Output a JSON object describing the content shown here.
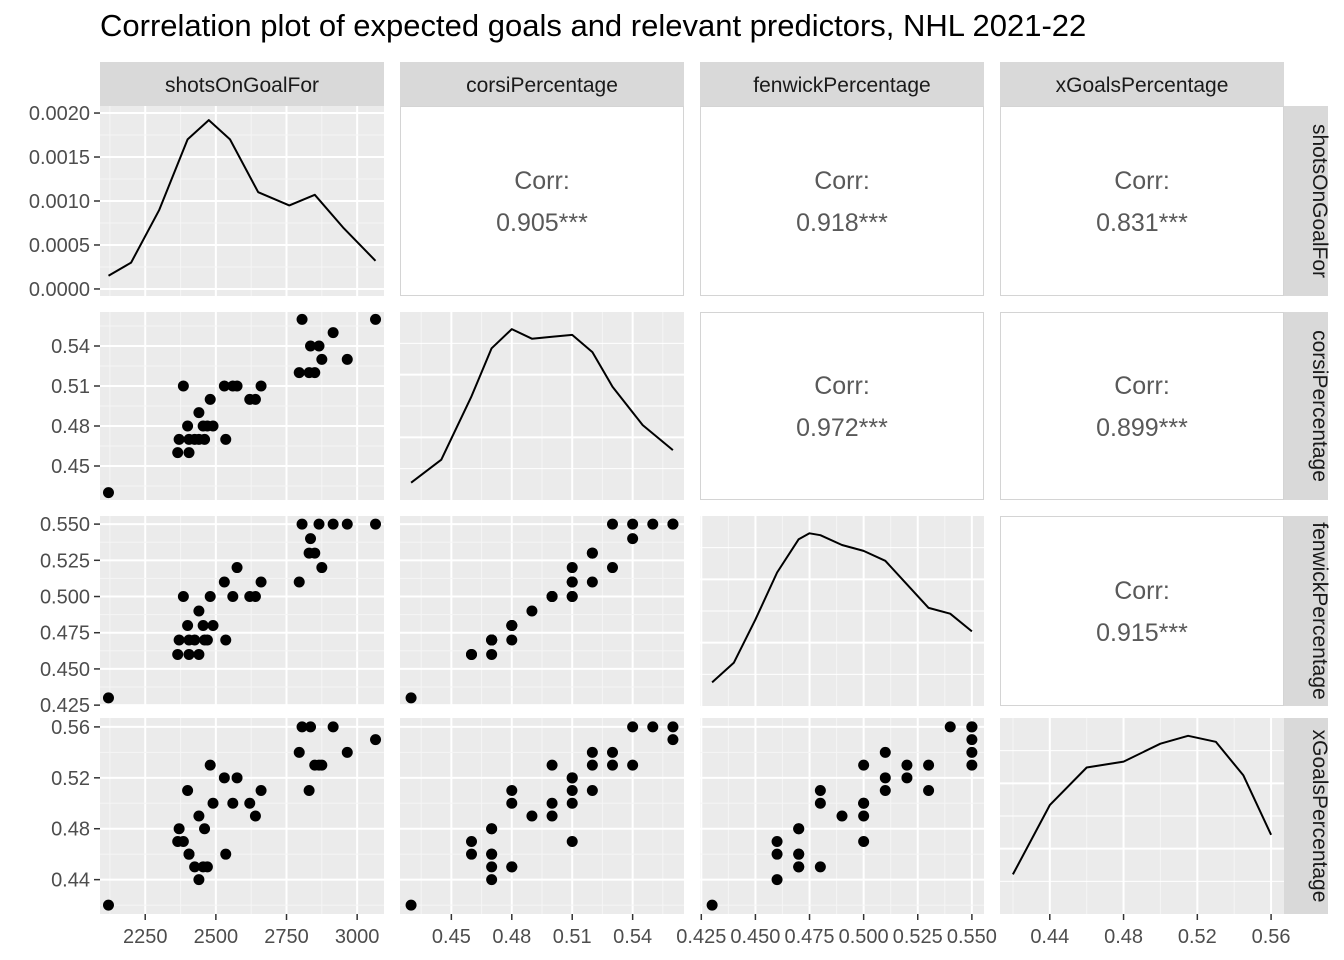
{
  "chart_data": {
    "type": "scatter",
    "title": "Correlation plot of expected goals and relevant predictors, NHL 2021-22",
    "variables": [
      "shotsOnGoalFor",
      "corsiPercentage",
      "fenwickPercentage",
      "xGoalsPercentage"
    ],
    "corr_label": "Corr:",
    "correlations": [
      {
        "row": 0,
        "col": 1,
        "value": "0.905***"
      },
      {
        "row": 0,
        "col": 2,
        "value": "0.918***"
      },
      {
        "row": 0,
        "col": 3,
        "value": "0.831***"
      },
      {
        "row": 1,
        "col": 2,
        "value": "0.972***"
      },
      {
        "row": 1,
        "col": 3,
        "value": "0.899***"
      },
      {
        "row": 2,
        "col": 3,
        "value": "0.915***"
      }
    ],
    "points": [
      {
        "shotsOnGoalFor": 2120,
        "corsiPercentage": 0.43,
        "fenwickPercentage": 0.43,
        "xGoalsPercentage": 0.42
      },
      {
        "shotsOnGoalFor": 2365,
        "corsiPercentage": 0.46,
        "fenwickPercentage": 0.46,
        "xGoalsPercentage": 0.47
      },
      {
        "shotsOnGoalFor": 2370,
        "corsiPercentage": 0.47,
        "fenwickPercentage": 0.47,
        "xGoalsPercentage": 0.48
      },
      {
        "shotsOnGoalFor": 2385,
        "corsiPercentage": 0.51,
        "fenwickPercentage": 0.5,
        "xGoalsPercentage": 0.47
      },
      {
        "shotsOnGoalFor": 2400,
        "corsiPercentage": 0.48,
        "fenwickPercentage": 0.48,
        "xGoalsPercentage": 0.51
      },
      {
        "shotsOnGoalFor": 2405,
        "corsiPercentage": 0.46,
        "fenwickPercentage": 0.46,
        "xGoalsPercentage": 0.46
      },
      {
        "shotsOnGoalFor": 2405,
        "corsiPercentage": 0.47,
        "fenwickPercentage": 0.47,
        "xGoalsPercentage": 0.46
      },
      {
        "shotsOnGoalFor": 2425,
        "corsiPercentage": 0.47,
        "fenwickPercentage": 0.47,
        "xGoalsPercentage": 0.45
      },
      {
        "shotsOnGoalFor": 2440,
        "corsiPercentage": 0.49,
        "fenwickPercentage": 0.49,
        "xGoalsPercentage": 0.49
      },
      {
        "shotsOnGoalFor": 2440,
        "corsiPercentage": 0.47,
        "fenwickPercentage": 0.46,
        "xGoalsPercentage": 0.44
      },
      {
        "shotsOnGoalFor": 2455,
        "corsiPercentage": 0.48,
        "fenwickPercentage": 0.48,
        "xGoalsPercentage": 0.45
      },
      {
        "shotsOnGoalFor": 2460,
        "corsiPercentage": 0.47,
        "fenwickPercentage": 0.47,
        "xGoalsPercentage": 0.48
      },
      {
        "shotsOnGoalFor": 2470,
        "corsiPercentage": 0.48,
        "fenwickPercentage": 0.47,
        "xGoalsPercentage": 0.45
      },
      {
        "shotsOnGoalFor": 2480,
        "corsiPercentage": 0.5,
        "fenwickPercentage": 0.5,
        "xGoalsPercentage": 0.53
      },
      {
        "shotsOnGoalFor": 2490,
        "corsiPercentage": 0.48,
        "fenwickPercentage": 0.48,
        "xGoalsPercentage": 0.5
      },
      {
        "shotsOnGoalFor": 2530,
        "corsiPercentage": 0.51,
        "fenwickPercentage": 0.51,
        "xGoalsPercentage": 0.52
      },
      {
        "shotsOnGoalFor": 2535,
        "corsiPercentage": 0.47,
        "fenwickPercentage": 0.47,
        "xGoalsPercentage": 0.46
      },
      {
        "shotsOnGoalFor": 2560,
        "corsiPercentage": 0.51,
        "fenwickPercentage": 0.5,
        "xGoalsPercentage": 0.5
      },
      {
        "shotsOnGoalFor": 2575,
        "corsiPercentage": 0.51,
        "fenwickPercentage": 0.52,
        "xGoalsPercentage": 0.52
      },
      {
        "shotsOnGoalFor": 2620,
        "corsiPercentage": 0.5,
        "fenwickPercentage": 0.5,
        "xGoalsPercentage": 0.5
      },
      {
        "shotsOnGoalFor": 2640,
        "corsiPercentage": 0.5,
        "fenwickPercentage": 0.5,
        "xGoalsPercentage": 0.49
      },
      {
        "shotsOnGoalFor": 2660,
        "corsiPercentage": 0.51,
        "fenwickPercentage": 0.51,
        "xGoalsPercentage": 0.51
      },
      {
        "shotsOnGoalFor": 2795,
        "corsiPercentage": 0.52,
        "fenwickPercentage": 0.51,
        "xGoalsPercentage": 0.54
      },
      {
        "shotsOnGoalFor": 2805,
        "corsiPercentage": 0.56,
        "fenwickPercentage": 0.55,
        "xGoalsPercentage": 0.56
      },
      {
        "shotsOnGoalFor": 2830,
        "corsiPercentage": 0.52,
        "fenwickPercentage": 0.53,
        "xGoalsPercentage": 0.51
      },
      {
        "shotsOnGoalFor": 2835,
        "corsiPercentage": 0.54,
        "fenwickPercentage": 0.54,
        "xGoalsPercentage": 0.56
      },
      {
        "shotsOnGoalFor": 2850,
        "corsiPercentage": 0.52,
        "fenwickPercentage": 0.53,
        "xGoalsPercentage": 0.53
      },
      {
        "shotsOnGoalFor": 2865,
        "corsiPercentage": 0.54,
        "fenwickPercentage": 0.55,
        "xGoalsPercentage": 0.53
      },
      {
        "shotsOnGoalFor": 2875,
        "corsiPercentage": 0.53,
        "fenwickPercentage": 0.52,
        "xGoalsPercentage": 0.53
      },
      {
        "shotsOnGoalFor": 2915,
        "corsiPercentage": 0.55,
        "fenwickPercentage": 0.55,
        "xGoalsPercentage": 0.56
      },
      {
        "shotsOnGoalFor": 2965,
        "corsiPercentage": 0.53,
        "fenwickPercentage": 0.55,
        "xGoalsPercentage": 0.54
      },
      {
        "shotsOnGoalFor": 3065,
        "corsiPercentage": 0.56,
        "fenwickPercentage": 0.55,
        "xGoalsPercentage": 0.55
      }
    ],
    "densities": [
      {
        "variable": "shotsOnGoalFor",
        "x": [
          2120,
          2200,
          2300,
          2400,
          2475,
          2550,
          2650,
          2760,
          2850,
          2950,
          3065
        ],
        "y": [
          0.00015,
          0.0003,
          0.0009,
          0.0017,
          0.00192,
          0.0017,
          0.0011,
          0.00095,
          0.00107,
          0.0007,
          0.00032
        ]
      },
      {
        "variable": "corsiPercentage",
        "x": [
          0.43,
          0.445,
          0.46,
          0.47,
          0.48,
          0.49,
          0.5,
          0.51,
          0.52,
          0.53,
          0.545,
          0.56
        ],
        "y": [
          0.9,
          2.1,
          5.4,
          7.9,
          8.9,
          8.4,
          8.5,
          8.6,
          7.7,
          5.9,
          3.9,
          2.6
        ]
      },
      {
        "variable": "fenwickPercentage",
        "x": [
          0.43,
          0.44,
          0.45,
          0.46,
          0.47,
          0.475,
          0.48,
          0.49,
          0.5,
          0.51,
          0.52,
          0.53,
          0.54,
          0.55
        ],
        "y": [
          1.2,
          2.2,
          4.4,
          6.8,
          8.5,
          8.8,
          8.7,
          8.2,
          7.9,
          7.4,
          6.2,
          5.0,
          4.7,
          3.8
        ]
      },
      {
        "variable": "xGoalsPercentage",
        "x": [
          0.42,
          0.44,
          0.46,
          0.48,
          0.5,
          0.515,
          0.53,
          0.545,
          0.56
        ],
        "y": [
          2.0,
          5.5,
          7.4,
          7.7,
          8.6,
          9.0,
          8.7,
          7.0,
          4.0
        ]
      }
    ],
    "axes": {
      "shotsOnGoalFor": {
        "lim": [
          2090,
          3095
        ],
        "ticks": [
          2250,
          2500,
          2750,
          3000
        ],
        "tick_labels": [
          "2250",
          "2500",
          "2750",
          "3000"
        ]
      },
      "corsiPercentage": {
        "lim": [
          0.4245,
          0.5655
        ],
        "ticks": [
          0.45,
          0.48,
          0.51,
          0.54
        ],
        "tick_labels": [
          "0.45",
          "0.48",
          "0.51",
          "0.54"
        ]
      },
      "fenwickPercentage": {
        "lim": [
          0.4244,
          0.5556
        ],
        "ticks": [
          0.425,
          0.45,
          0.475,
          0.5,
          0.525,
          0.55
        ],
        "tick_labels": [
          "0.425",
          "0.450",
          "0.475",
          "0.500",
          "0.525",
          "0.550"
        ]
      },
      "xGoalsPercentage": {
        "lim": [
          0.413,
          0.567
        ],
        "ticks": [
          0.44,
          0.48,
          0.52,
          0.56
        ],
        "tick_labels": [
          "0.44",
          "0.48",
          "0.52",
          "0.56"
        ]
      }
    },
    "density_axis": {
      "lim": [
        -8e-05,
        0.00208
      ],
      "ticks": [
        0,
        0.0005,
        0.001,
        0.0015,
        0.002
      ],
      "tick_labels": [
        "0.0000",
        "0.0005",
        "0.0010",
        "0.0015",
        "0.0020"
      ]
    },
    "grid": true,
    "colors": {
      "panel_bg": "#EBEBEB",
      "strip_bg": "#D9D9D9",
      "grid_major": "#FFFFFF",
      "points": "#000000",
      "corr_text": "#595959",
      "axis_text": "#4D4D4D"
    }
  }
}
